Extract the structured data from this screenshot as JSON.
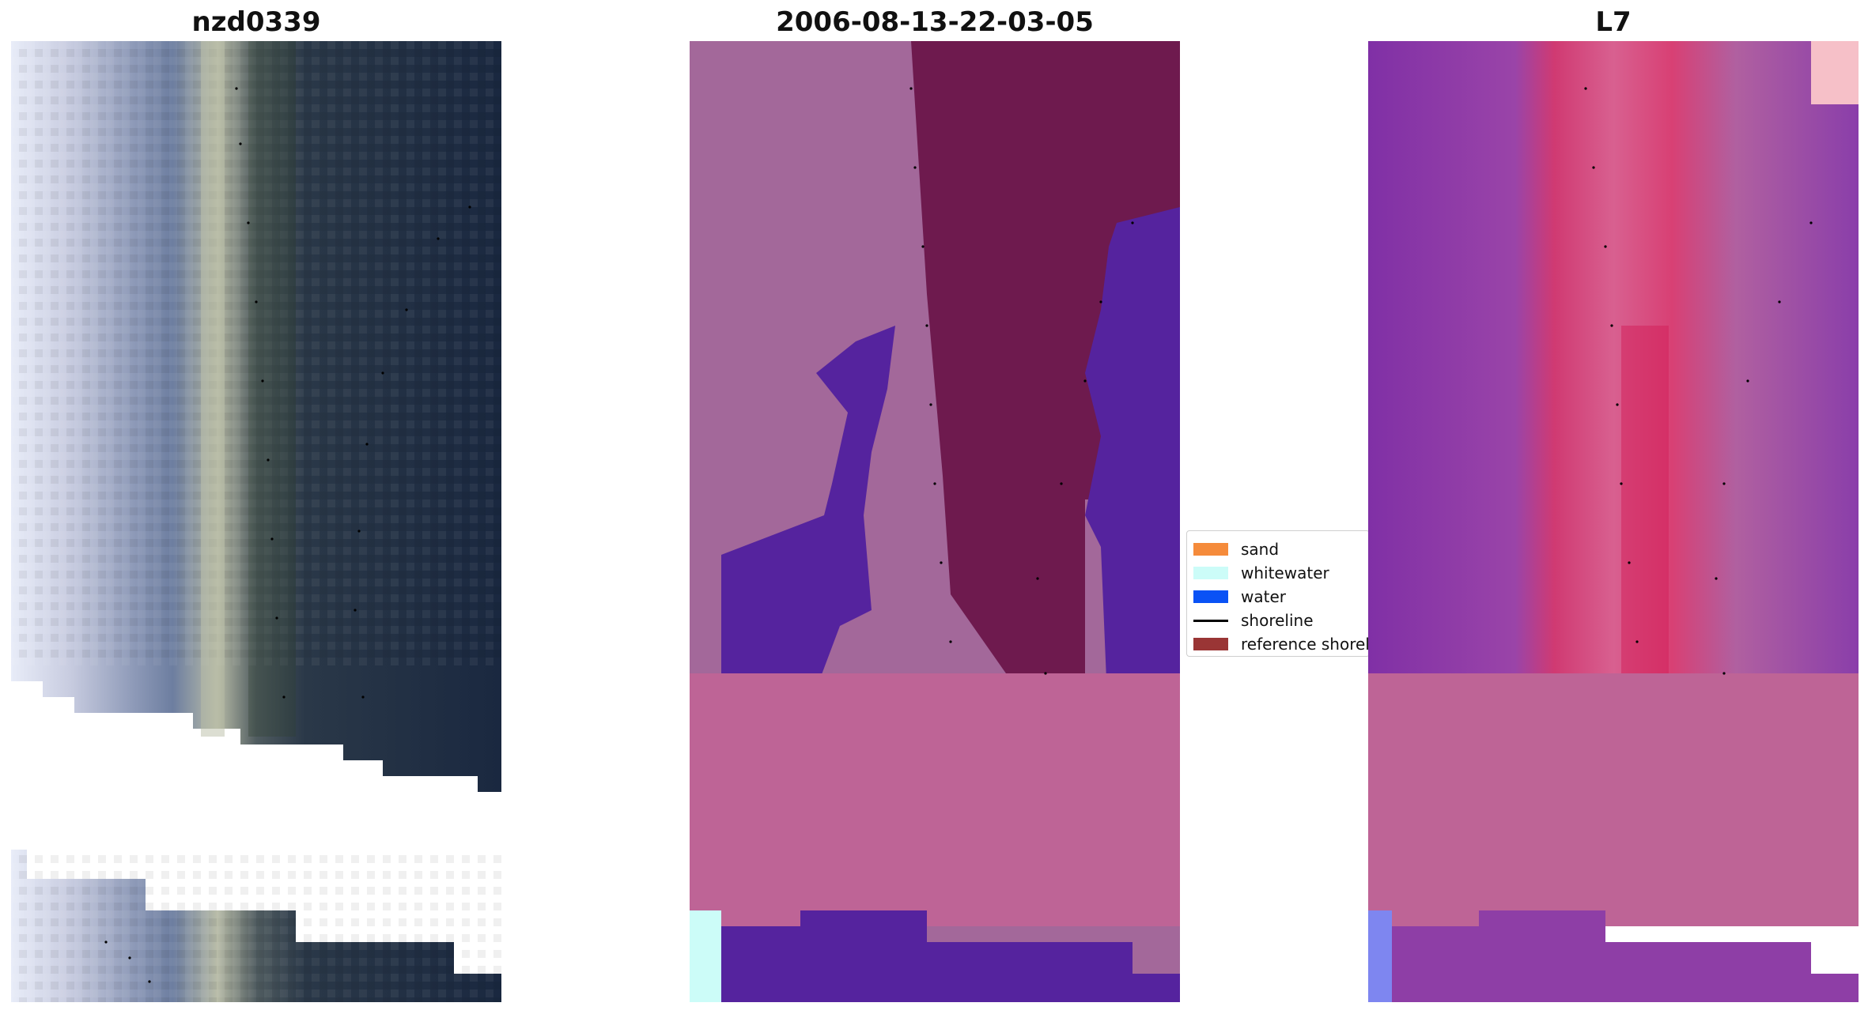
{
  "titles": {
    "left": "nzd0339",
    "middle": "2006-08-13-22-03-05",
    "right": "L7"
  },
  "legend": {
    "items": [
      {
        "label": "sand",
        "color": "#f58b3b",
        "kind": "swatch"
      },
      {
        "label": "whitewater",
        "color": "#ccfcf8",
        "kind": "swatch"
      },
      {
        "label": "water",
        "color": "#0a52f5",
        "kind": "swatch"
      },
      {
        "label": "shoreline",
        "color": "#000000",
        "kind": "line"
      },
      {
        "label": "reference shoreline",
        "color": "#9a3535",
        "kind": "swatch"
      }
    ]
  },
  "colors": {
    "rgb_water_dark": "#1a2840",
    "rgb_land_light": "#c8cce0",
    "class_land": "#a3689a",
    "class_water": "#55239e",
    "class_reference": "#6e1a4e",
    "class_nodata": "#be6496",
    "class_whitewater": "#ccfcf8",
    "index_base": "#8e3ea6",
    "index_high": "#d83a70",
    "index_nodata": "#be6496"
  }
}
